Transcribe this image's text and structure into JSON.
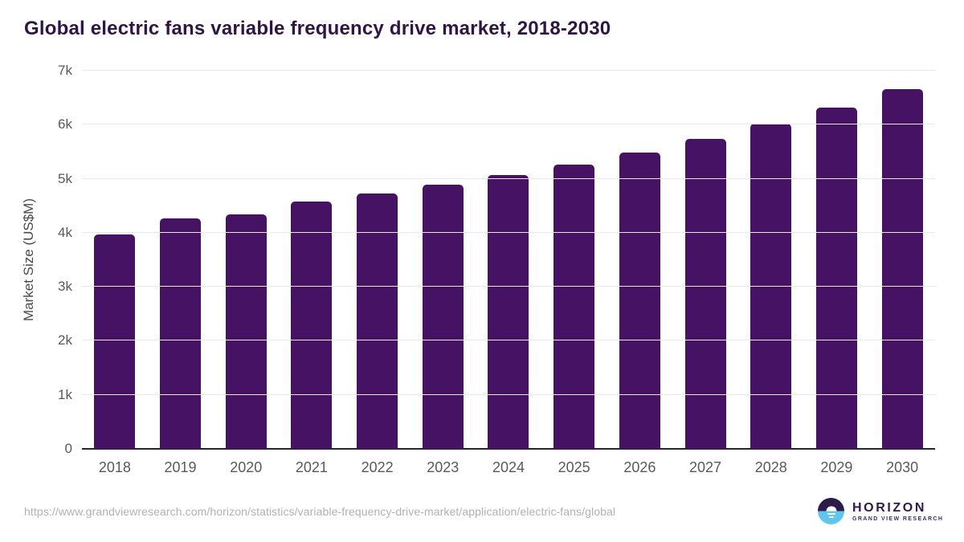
{
  "title": "Global electric fans variable frequency drive market, 2018-2030",
  "footer": {
    "source_url": "https://www.grandviewresearch.com/horizon/statistics/variable-frequency-drive-market/application/electric-fans/global",
    "logo": {
      "brand": "HORIZON",
      "sub": "GRAND VIEW RESEARCH",
      "icon": "horizon-sun-circle-icon"
    }
  },
  "colors": {
    "bar": "#461264",
    "title": "#2f1543",
    "tick_text": "#595959",
    "gridline": "#e9e9e9",
    "baseline": "#262626",
    "url_text": "#b3b0b0",
    "logo_dark": "#2d1b4a",
    "logo_blue": "#62c5f0"
  },
  "chart_data": {
    "type": "bar",
    "title": "Global electric fans variable frequency drive market, 2018-2030",
    "categories": [
      "2018",
      "2019",
      "2020",
      "2021",
      "2022",
      "2023",
      "2024",
      "2025",
      "2026",
      "2027",
      "2028",
      "2029",
      "2030"
    ],
    "values": [
      3970,
      4260,
      4340,
      4580,
      4720,
      4890,
      5070,
      5260,
      5480,
      5740,
      6020,
      6320,
      6660
    ],
    "xlabel": "",
    "ylabel": "Market Size (US$M)",
    "ylim": [
      0,
      7000
    ],
    "yticks": [
      "0",
      "1k",
      "2k",
      "3k",
      "4k",
      "5k",
      "6k",
      "7k"
    ],
    "grid": true,
    "legend": false,
    "legend_position": "none",
    "units": "US$M"
  }
}
